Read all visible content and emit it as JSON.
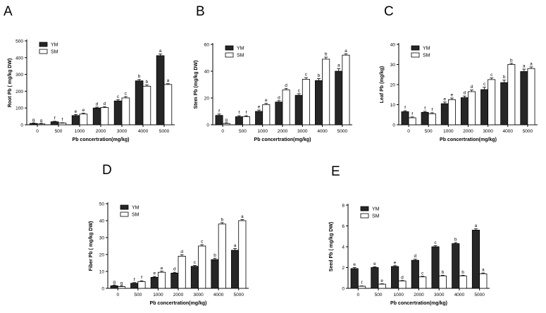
{
  "colors": {
    "YM": "#262626",
    "SM": "#ffffff",
    "stroke": "#000000"
  },
  "chart_data": [
    {
      "panel": "A",
      "type": "bar",
      "ylabel": "Root Pb ( mg/kg DW)",
      "xlabel": "Pb concertration(mg/kg)",
      "categories": [
        "0",
        "500",
        "1000",
        "2000",
        "3000",
        "4000",
        "5000"
      ],
      "ylim": [
        0,
        500
      ],
      "yticks": [
        0,
        100,
        200,
        300,
        400,
        500
      ],
      "legend_position": "top-left",
      "grid": false,
      "series": [
        {
          "name": "YM",
          "values": [
            8,
            18,
            55,
            100,
            142,
            262,
            412
          ],
          "errors": [
            2,
            3,
            6,
            5,
            8,
            8,
            10
          ],
          "letters": [
            "g",
            "f",
            "e",
            "d",
            "c",
            "b",
            "a"
          ]
        },
        {
          "name": "SM",
          "values": [
            5,
            10,
            64,
            103,
            160,
            230,
            240
          ],
          "errors": [
            2,
            2,
            5,
            5,
            8,
            7,
            5
          ],
          "letters": [
            "g",
            "f",
            "e",
            "d",
            "c",
            "b",
            "a"
          ]
        }
      ]
    },
    {
      "panel": "B",
      "type": "bar",
      "ylabel": "Stem Pb (mg/kg DW)",
      "xlabel": "Pb concertration(mg/kg)",
      "categories": [
        "0",
        "500",
        "1000",
        "2000",
        "3000",
        "4000",
        "5000"
      ],
      "ylim": [
        0,
        60
      ],
      "yticks": [
        0,
        20,
        40,
        60
      ],
      "legend_position": "top-left",
      "grid": false,
      "series": [
        {
          "name": "YM",
          "values": [
            7,
            6,
            10,
            17,
            22,
            33,
            40
          ],
          "errors": [
            1,
            0.8,
            1,
            1,
            1.2,
            1.5,
            2
          ],
          "letters": [
            "f",
            "f",
            "e",
            "d",
            "c",
            "b",
            "a"
          ]
        },
        {
          "name": "SM",
          "values": [
            1,
            6,
            15,
            26,
            34,
            49,
            52
          ],
          "errors": [
            0.3,
            0.8,
            1,
            1.2,
            1.2,
            1.5,
            1
          ],
          "letters": [
            "g",
            "f",
            "e",
            "d",
            "c",
            "b",
            "a"
          ]
        }
      ]
    },
    {
      "panel": "C",
      "type": "bar",
      "ylabel": "Leaf Pb (mg/kg)",
      "xlabel": "Pb concertration(mg/kg)",
      "categories": [
        "0",
        "500",
        "1000",
        "2000",
        "3000",
        "4000",
        "5000"
      ],
      "ylim": [
        0,
        40
      ],
      "yticks": [
        0,
        10,
        20,
        30,
        40
      ],
      "legend_position": "top-left",
      "grid": false,
      "series": [
        {
          "name": "YM",
          "values": [
            6.5,
            6.2,
            10.5,
            13.5,
            17.5,
            21,
            26.5
          ],
          "errors": [
            0.5,
            0.5,
            0.8,
            0.8,
            1.2,
            1.2,
            1.2
          ],
          "letters": [
            "f",
            "f",
            "e",
            "d",
            "c",
            "b",
            "a"
          ]
        },
        {
          "name": "SM",
          "values": [
            3.5,
            5.5,
            12.5,
            16.5,
            22.5,
            30,
            28
          ],
          "errors": [
            0.4,
            0.5,
            0.8,
            0.8,
            0.8,
            0.6,
            0.8
          ],
          "letters": [
            "f",
            "f",
            "e",
            "d",
            "c",
            "b",
            "a"
          ]
        }
      ]
    },
    {
      "panel": "D",
      "type": "bar",
      "ylabel": "Fiber Pb ( mg/kg DW)",
      "xlabel": "Pb concertration(mg/kg)",
      "categories": [
        "0",
        "500",
        "1000",
        "2000",
        "3000",
        "4000",
        "5000"
      ],
      "ylim": [
        0,
        50
      ],
      "yticks": [
        0,
        10,
        20,
        30,
        40,
        50
      ],
      "legend_position": "top-left",
      "grid": false,
      "series": [
        {
          "name": "YM",
          "values": [
            1.5,
            3,
            6.5,
            9,
            13,
            17,
            22.5
          ],
          "errors": [
            0.3,
            0.4,
            0.5,
            0.5,
            0.6,
            0.8,
            1
          ],
          "letters": [
            "g",
            "f",
            "e",
            "d",
            "c",
            "b",
            "a"
          ]
        },
        {
          "name": "SM",
          "values": [
            1,
            4,
            9.5,
            19,
            25,
            38,
            40
          ],
          "errors": [
            0.3,
            0.5,
            0.6,
            0.8,
            0.8,
            0.8,
            0.6
          ],
          "letters": [
            "g",
            "f",
            "e",
            "d",
            "c",
            "b",
            "a"
          ]
        }
      ]
    },
    {
      "panel": "E",
      "type": "bar",
      "ylabel": "Seed Pb ( mg/kg DW)",
      "xlabel": "Pb concertration(mg/kg)",
      "categories": [
        "0",
        "500",
        "1000",
        "2000",
        "3000",
        "4000",
        "5000"
      ],
      "ylim": [
        0,
        8
      ],
      "yticks": [
        0,
        2,
        4,
        6,
        8
      ],
      "legend_position": "top-left",
      "grid": false,
      "series": [
        {
          "name": "YM",
          "values": [
            1.9,
            2,
            2.1,
            2.7,
            4,
            4.3,
            5.6
          ],
          "errors": [
            0.1,
            0.08,
            0.08,
            0.1,
            0.1,
            0.1,
            0.12
          ],
          "letters": [
            "e",
            "e",
            "e",
            "d",
            "c",
            "b",
            "a"
          ]
        },
        {
          "name": "SM",
          "values": [
            0.2,
            0.4,
            0.7,
            1.1,
            1.2,
            1.2,
            1.4
          ],
          "errors": [
            0.03,
            0.04,
            0.05,
            0.06,
            0.06,
            0.06,
            0.08
          ],
          "letters": [
            "f",
            "e",
            "d",
            "c",
            "b",
            "b",
            "a"
          ]
        }
      ]
    }
  ]
}
